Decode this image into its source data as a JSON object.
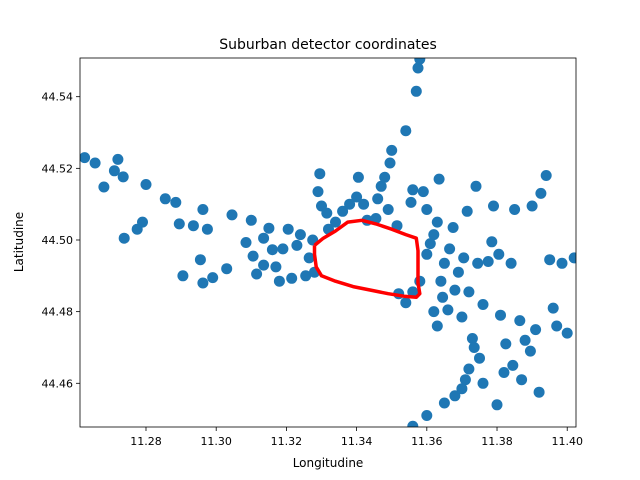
{
  "chart_data": {
    "type": "scatter",
    "title": "Suburban detector coordinates",
    "xlabel": "Longitudine",
    "ylabel": "Latitudine",
    "xlim": [
      11.2612,
      11.4025
    ],
    "ylim": [
      44.4478,
      44.5508
    ],
    "x_ticks": [
      11.28,
      11.3,
      11.32,
      11.34,
      11.36,
      11.38,
      11.4
    ],
    "y_ticks": [
      44.46,
      44.48,
      44.5,
      44.52,
      44.54
    ],
    "x_tick_labels": [
      "11.28",
      "11.30",
      "11.32",
      "11.34",
      "11.36",
      "11.38",
      "11.40"
    ],
    "y_tick_labels": [
      "44.46",
      "44.48",
      "44.50",
      "44.52",
      "44.54"
    ],
    "grid": false,
    "colors": {
      "points": "#1f77b4",
      "boundary": "#ff0000"
    },
    "points": [
      [
        11.2625,
        44.523
      ],
      [
        11.2655,
        44.5215
      ],
      [
        11.268,
        44.5148
      ],
      [
        11.271,
        44.5193
      ],
      [
        11.272,
        44.5225
      ],
      [
        11.2735,
        44.5176
      ],
      [
        11.2738,
        44.5005
      ],
      [
        11.2775,
        44.503
      ],
      [
        11.279,
        44.505
      ],
      [
        11.28,
        44.5155
      ],
      [
        11.2855,
        44.5115
      ],
      [
        11.2885,
        44.5105
      ],
      [
        11.2895,
        44.5045
      ],
      [
        11.2935,
        44.504
      ],
      [
        11.2962,
        44.5085
      ],
      [
        11.2975,
        44.503
      ],
      [
        11.299,
        44.4895
      ],
      [
        11.2905,
        44.49
      ],
      [
        11.2955,
        44.4945
      ],
      [
        11.2962,
        44.488
      ],
      [
        11.303,
        44.492
      ],
      [
        11.3045,
        44.507
      ],
      [
        11.3085,
        44.4993
      ],
      [
        11.31,
        44.5055
      ],
      [
        11.3105,
        44.4955
      ],
      [
        11.3115,
        44.4905
      ],
      [
        11.3135,
        44.493
      ],
      [
        11.3135,
        44.5005
      ],
      [
        11.315,
        44.5033
      ],
      [
        11.316,
        44.4973
      ],
      [
        11.317,
        44.4925
      ],
      [
        11.318,
        44.4885
      ],
      [
        11.319,
        44.4975
      ],
      [
        11.3205,
        44.503
      ],
      [
        11.3215,
        44.4893
      ],
      [
        11.323,
        44.4985
      ],
      [
        11.324,
        44.5015
      ],
      [
        11.3255,
        44.49
      ],
      [
        11.3265,
        44.495
      ],
      [
        11.3275,
        44.5
      ],
      [
        11.328,
        44.491
      ],
      [
        11.329,
        44.5135
      ],
      [
        11.3295,
        44.5185
      ],
      [
        11.33,
        44.5095
      ],
      [
        11.3315,
        44.5075
      ],
      [
        11.332,
        44.503
      ],
      [
        11.334,
        44.505
      ],
      [
        11.336,
        44.508
      ],
      [
        11.338,
        44.51
      ],
      [
        11.34,
        44.512
      ],
      [
        11.3405,
        44.5175
      ],
      [
        11.342,
        44.51
      ],
      [
        11.343,
        44.5055
      ],
      [
        11.3455,
        44.506
      ],
      [
        11.346,
        44.5115
      ],
      [
        11.347,
        44.515
      ],
      [
        11.348,
        44.5175
      ],
      [
        11.349,
        44.5085
      ],
      [
        11.3495,
        44.5215
      ],
      [
        11.35,
        44.525
      ],
      [
        11.3515,
        44.504
      ],
      [
        11.352,
        44.485
      ],
      [
        11.354,
        44.5305
      ],
      [
        11.3555,
        44.5105
      ],
      [
        11.356,
        44.514
      ],
      [
        11.357,
        44.5415
      ],
      [
        11.3575,
        44.548
      ],
      [
        11.358,
        44.5505
      ],
      [
        11.359,
        44.5135
      ],
      [
        11.36,
        44.5085
      ],
      [
        11.36,
        44.496
      ],
      [
        11.361,
        44.499
      ],
      [
        11.362,
        44.5015
      ],
      [
        11.363,
        44.505
      ],
      [
        11.3635,
        44.517
      ],
      [
        11.364,
        44.4885
      ],
      [
        11.3645,
        44.484
      ],
      [
        11.365,
        44.4935
      ],
      [
        11.366,
        44.4805
      ],
      [
        11.3665,
        44.4975
      ],
      [
        11.3675,
        44.5035
      ],
      [
        11.368,
        44.486
      ],
      [
        11.369,
        44.491
      ],
      [
        11.37,
        44.4785
      ],
      [
        11.3705,
        44.495
      ],
      [
        11.3715,
        44.508
      ],
      [
        11.372,
        44.4855
      ],
      [
        11.373,
        44.4725
      ],
      [
        11.374,
        44.515
      ],
      [
        11.3745,
        44.4935
      ],
      [
        11.375,
        44.467
      ],
      [
        11.376,
        44.482
      ],
      [
        11.3775,
        44.494
      ],
      [
        11.3785,
        44.4995
      ],
      [
        11.379,
        44.5095
      ],
      [
        11.3805,
        44.496
      ],
      [
        11.381,
        44.479
      ],
      [
        11.3825,
        44.471
      ],
      [
        11.384,
        44.4935
      ],
      [
        11.3845,
        44.465
      ],
      [
        11.385,
        44.5085
      ],
      [
        11.3865,
        44.4775
      ],
      [
        11.388,
        44.472
      ],
      [
        11.3895,
        44.469
      ],
      [
        11.39,
        44.5095
      ],
      [
        11.391,
        44.475
      ],
      [
        11.3925,
        44.513
      ],
      [
        11.394,
        44.518
      ],
      [
        11.395,
        44.4945
      ],
      [
        11.396,
        44.481
      ],
      [
        11.397,
        44.476
      ],
      [
        11.3985,
        44.4935
      ],
      [
        11.4,
        44.474
      ],
      [
        11.402,
        44.495
      ],
      [
        11.356,
        44.448
      ],
      [
        11.36,
        44.451
      ],
      [
        11.365,
        44.4545
      ],
      [
        11.368,
        44.4565
      ],
      [
        11.37,
        44.4585
      ],
      [
        11.371,
        44.461
      ],
      [
        11.372,
        44.464
      ],
      [
        11.3735,
        44.47
      ],
      [
        11.376,
        44.46
      ],
      [
        11.38,
        44.454
      ],
      [
        11.382,
        44.463
      ],
      [
        11.387,
        44.461
      ],
      [
        11.392,
        44.4575
      ],
      [
        11.354,
        44.4825
      ],
      [
        11.356,
        44.4855
      ],
      [
        11.358,
        44.4885
      ],
      [
        11.362,
        44.48
      ],
      [
        11.363,
        44.476
      ]
    ],
    "boundary_path": [
      [
        11.328,
        44.4985
      ],
      [
        11.3305,
        44.5005
      ],
      [
        11.334,
        44.5025
      ],
      [
        11.3375,
        44.505
      ],
      [
        11.3415,
        44.5055
      ],
      [
        11.3455,
        44.5045
      ],
      [
        11.35,
        44.503
      ],
      [
        11.354,
        44.5015
      ],
      [
        11.357,
        44.5005
      ],
      [
        11.3575,
        44.497
      ],
      [
        11.3575,
        44.492
      ],
      [
        11.3575,
        44.488
      ],
      [
        11.358,
        44.485
      ],
      [
        11.357,
        44.484
      ],
      [
        11.3535,
        44.4843
      ],
      [
        11.349,
        44.485
      ],
      [
        11.344,
        44.486
      ],
      [
        11.339,
        44.487
      ],
      [
        11.334,
        44.4885
      ],
      [
        11.33,
        44.49
      ],
      [
        11.3285,
        44.4925
      ],
      [
        11.328,
        44.496
      ],
      [
        11.328,
        44.4985
      ]
    ]
  }
}
